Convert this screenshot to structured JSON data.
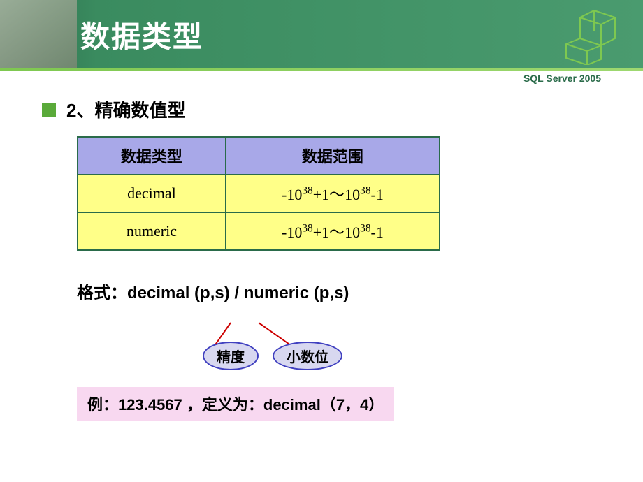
{
  "header": {
    "title": "数据类型",
    "subtitle": "SQL Server 2005"
  },
  "section": {
    "number": "2",
    "title": "、精确数值型"
  },
  "table": {
    "header_bg": "#a8a8e8",
    "cell_bg": "#ffff88",
    "border_color": "#2a6b4a",
    "columns": [
      "数据类型",
      "数据范围"
    ],
    "rows": [
      {
        "type": "decimal",
        "range_html": "-10<sup>38</sup>+1～10<sup>38</sup>-1"
      },
      {
        "type": "numeric",
        "range_html": "-10<sup>38</sup>+1～10<sup>38</sup>-1"
      }
    ]
  },
  "format": {
    "label": "格式：",
    "text": "decimal (p,s) / numeric (p,s)"
  },
  "diagram": {
    "ellipse_bg": "#d8d8f0",
    "ellipse_border": "#4040c0",
    "line_color": "#cc0000",
    "label1": "精度",
    "label2": "小数位"
  },
  "example": {
    "bg": "#f8d8f0",
    "label": "例：",
    "value": "123.4567 ，定义为：decimal（7，4）"
  },
  "colors": {
    "header_gradient_start": "#2a6b4a",
    "header_gradient_end": "#4a9b6f",
    "bullet": "#5aaa3a"
  }
}
